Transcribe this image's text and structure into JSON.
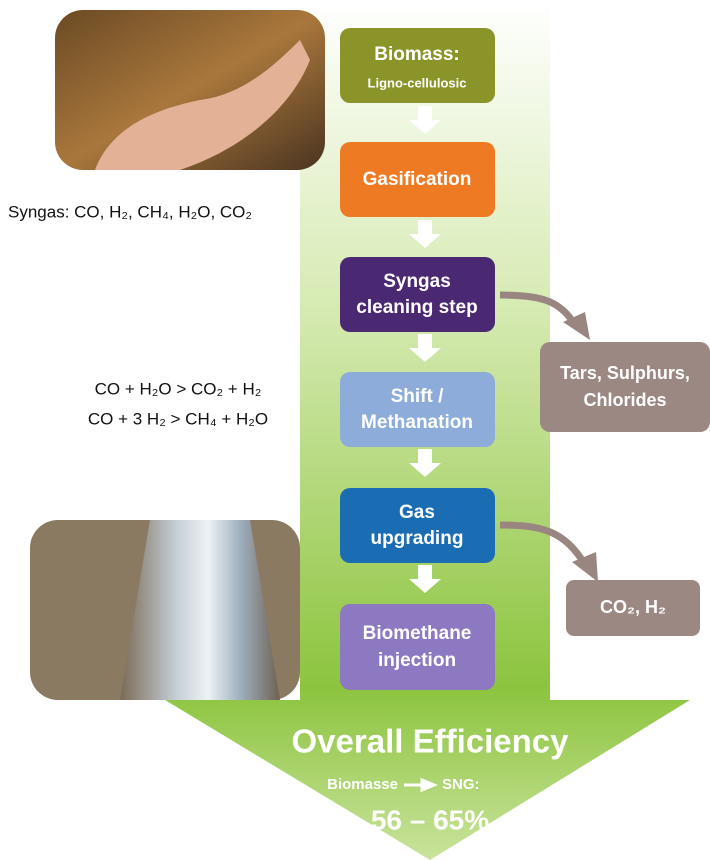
{
  "steps": [
    {
      "lines": [
        "Biomass:",
        "Ligno-cellulosic"
      ]
    },
    {
      "lines": [
        "Gasification"
      ]
    },
    {
      "lines": [
        "Syngas",
        "cleaning step"
      ]
    },
    {
      "lines": [
        "Shift /",
        "Methanation"
      ]
    },
    {
      "lines": [
        "Gas",
        "upgrading"
      ]
    },
    {
      "lines": [
        "Biomethane",
        "injection"
      ]
    }
  ],
  "byproducts": [
    {
      "lines": [
        "Tars, Sulphurs,",
        "Chlorides"
      ]
    },
    {
      "lines": [
        "CO₂, H₂"
      ]
    }
  ],
  "notes": {
    "syngas": "Syngas: CO, H₂, CH₄, H₂O, CO₂",
    "reactions": [
      "CO + H₂O > CO₂ + H₂",
      "CO + 3 H₂ > CH₄ + H₂O"
    ]
  },
  "result": {
    "title": "Overall Efficiency",
    "from": "Biomasse",
    "to": "SNG:",
    "efficiency": "56 – 65%"
  }
}
